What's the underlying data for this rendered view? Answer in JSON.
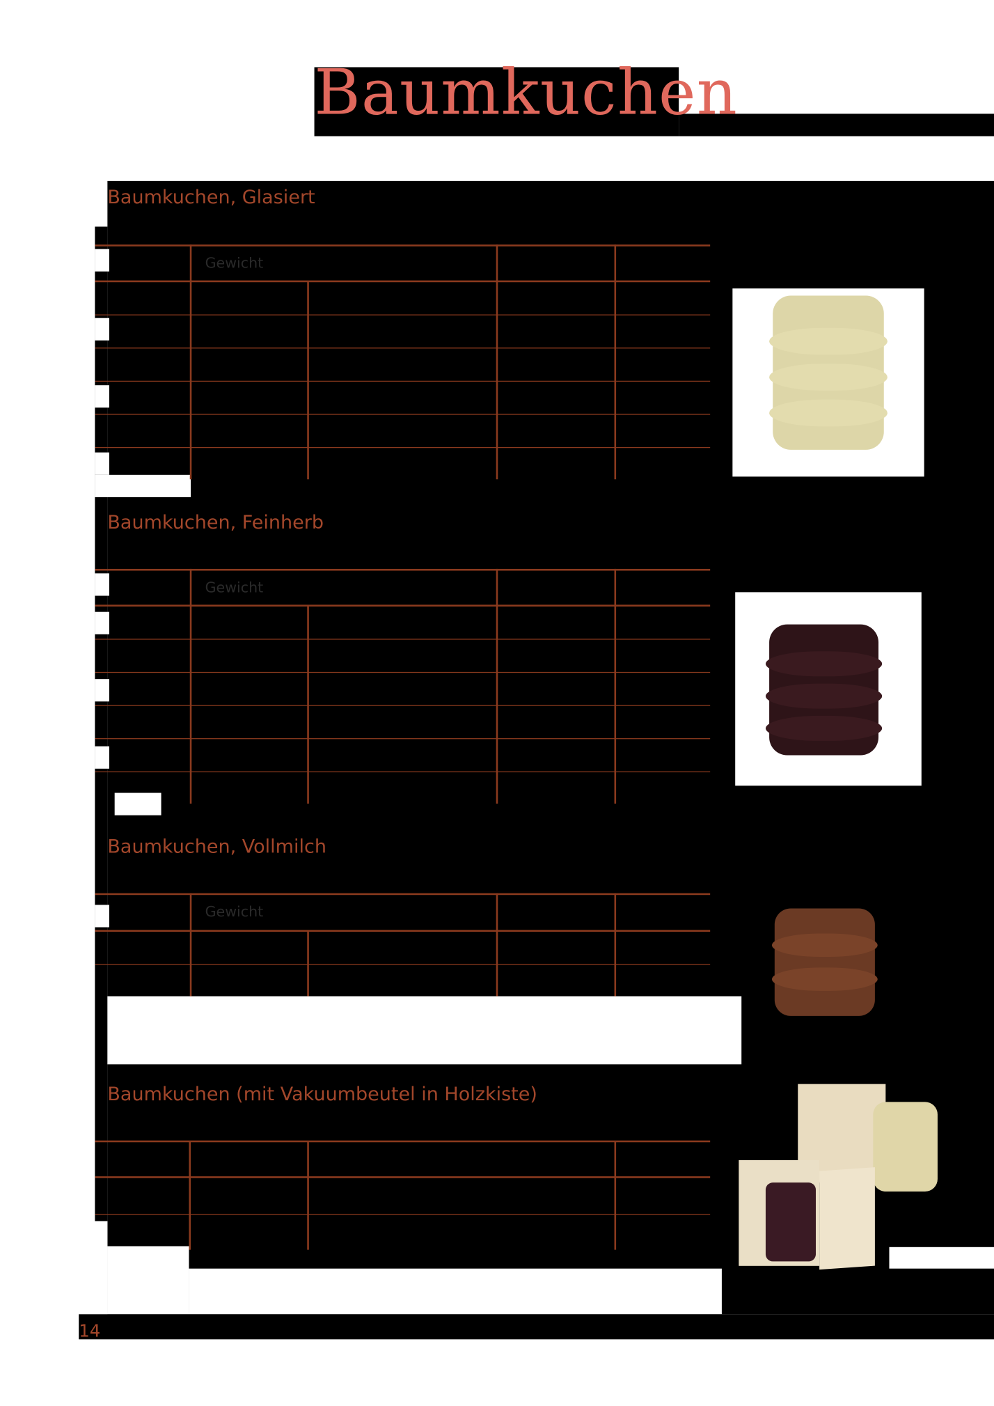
{
  "page_title": "Baumkuchen",
  "page_number": "14",
  "colors": {
    "title": "#e0685c",
    "heading": "#a3472b",
    "rule": "#8b3a1e"
  },
  "sections": [
    {
      "heading": "Baumkuchen, Glasiert",
      "column_header": "Gewicht",
      "image": "glazed-baumkuchen-photo"
    },
    {
      "heading": "Baumkuchen, Feinherb",
      "column_header": "Gewicht",
      "image": "dark-chocolate-baumkuchen-photo"
    },
    {
      "heading": "Baumkuchen, Vollmilch",
      "column_header": "Gewicht",
      "image": "milk-chocolate-baumkuchen-photo"
    },
    {
      "heading": "Baumkuchen (mit Vakuumbeutel in Holzkiste)",
      "image": "baumkuchen-wooden-box-photo"
    }
  ]
}
